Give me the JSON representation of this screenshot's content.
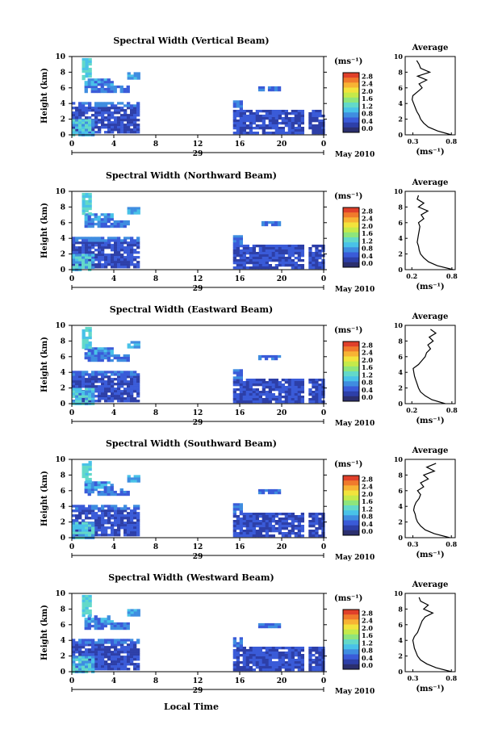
{
  "figure": {
    "date_label": "May 2010",
    "x_axis_title": "Local Time",
    "day_label": "29",
    "y_axis_title": "Height (km)",
    "unit_label": "(ms⁻¹)",
    "avg_title": "Average",
    "avg_unit": "(ms⁻¹)"
  },
  "colors": {
    "scale": [
      "#2b2f6e",
      "#2d3fa8",
      "#3a5bd8",
      "#3f8de0",
      "#49c2e8",
      "#63d9c9",
      "#8ee57c",
      "#c5ea4a",
      "#f2e33c",
      "#f7b334",
      "#f07a2c",
      "#e0402a"
    ]
  },
  "chart_data": [
    {
      "type": "heatmap",
      "title": "Spectral Width (Vertical Beam)",
      "x_ticks": [
        "0",
        "4",
        "8",
        "12",
        "16",
        "20",
        "0"
      ],
      "y_ticks": [
        "0",
        "2",
        "4",
        "6",
        "8",
        "10"
      ],
      "colorbar_ticks": [
        "0.0",
        "0.4",
        "0.8",
        "1.2",
        "1.6",
        "2.0",
        "2.4",
        "2.8"
      ],
      "avg_x_ticks": [
        "0.3",
        "0.8"
      ],
      "avg_profile": {
        "height_km": [
          0,
          0.5,
          1,
          1.5,
          2,
          2.5,
          3,
          3.5,
          4,
          4.5,
          5,
          5.5,
          6,
          6.5,
          7,
          7.5,
          8,
          8.5,
          9,
          9.5
        ],
        "width_ms": [
          0.8,
          0.62,
          0.5,
          0.44,
          0.4,
          0.38,
          0.35,
          0.33,
          0.31,
          0.29,
          0.3,
          0.36,
          0.42,
          0.38,
          0.48,
          0.36,
          0.52,
          0.4,
          0.38,
          0.35
        ]
      }
    },
    {
      "type": "heatmap",
      "title": "Spectral Width (Northward Beam)",
      "x_ticks": [
        "0",
        "4",
        "8",
        "12",
        "16",
        "20",
        "0"
      ],
      "y_ticks": [
        "0",
        "2",
        "4",
        "6",
        "8",
        "10"
      ],
      "colorbar_ticks": [
        "0.0",
        "0.4",
        "0.8",
        "1.2",
        "1.6",
        "2.0",
        "2.4",
        "2.8"
      ],
      "avg_x_ticks": [
        "0.2",
        "0.8"
      ],
      "avg_profile": {
        "height_km": [
          0,
          0.5,
          1,
          1.5,
          2,
          2.5,
          3,
          3.5,
          4,
          4.5,
          5,
          5.5,
          6,
          6.5,
          7,
          7.5,
          8,
          8.5,
          9,
          9.5
        ],
        "width_ms": [
          0.82,
          0.58,
          0.45,
          0.38,
          0.33,
          0.31,
          0.3,
          0.28,
          0.29,
          0.3,
          0.31,
          0.32,
          0.3,
          0.38,
          0.34,
          0.44,
          0.3,
          0.38,
          0.28,
          0.3
        ]
      }
    },
    {
      "type": "heatmap",
      "title": "Spectral Width (Eastward Beam)",
      "x_ticks": [
        "0",
        "4",
        "8",
        "12",
        "16",
        "20",
        "0"
      ],
      "y_ticks": [
        "0",
        "2",
        "4",
        "6",
        "8",
        "10"
      ],
      "colorbar_ticks": [
        "0.0",
        "0.4",
        "0.8",
        "1.2",
        "1.6",
        "2.0",
        "2.4",
        "2.8"
      ],
      "avg_x_ticks": [
        "0.2",
        "0.8"
      ],
      "avg_profile": {
        "height_km": [
          0,
          0.5,
          1,
          1.5,
          2,
          2.5,
          3,
          3.5,
          4,
          4.5,
          5,
          5.5,
          6,
          6.5,
          7,
          7.5,
          8,
          8.5,
          9,
          9.5
        ],
        "width_ms": [
          0.7,
          0.5,
          0.4,
          0.33,
          0.3,
          0.28,
          0.26,
          0.24,
          0.23,
          0.22,
          0.3,
          0.35,
          0.4,
          0.42,
          0.48,
          0.44,
          0.52,
          0.46,
          0.56,
          0.48
        ]
      }
    },
    {
      "type": "heatmap",
      "title": "Spectral Width (Southward Beam)",
      "x_ticks": [
        "0",
        "4",
        "8",
        "12",
        "16",
        "20",
        "0"
      ],
      "y_ticks": [
        "0",
        "2",
        "4",
        "6",
        "8",
        "10"
      ],
      "colorbar_ticks": [
        "0.0",
        "0.4",
        "0.8",
        "1.2",
        "1.6",
        "2.0",
        "2.4",
        "2.8"
      ],
      "avg_x_ticks": [
        "0.3",
        "0.8"
      ],
      "avg_profile": {
        "height_km": [
          0,
          0.5,
          1,
          1.5,
          2,
          2.5,
          3,
          3.5,
          4,
          4.5,
          5,
          5.5,
          6,
          6.5,
          7,
          7.5,
          8,
          8.5,
          9,
          9.5
        ],
        "width_ms": [
          0.78,
          0.58,
          0.46,
          0.4,
          0.36,
          0.34,
          0.33,
          0.31,
          0.32,
          0.34,
          0.38,
          0.4,
          0.36,
          0.44,
          0.4,
          0.5,
          0.44,
          0.58,
          0.48,
          0.6
        ]
      }
    },
    {
      "type": "heatmap",
      "title": "Spectral Width (Westward Beam)",
      "x_ticks": [
        "0",
        "4",
        "8",
        "12",
        "16",
        "20",
        "0"
      ],
      "y_ticks": [
        "0",
        "2",
        "4",
        "6",
        "8",
        "10"
      ],
      "colorbar_ticks": [
        "0.0",
        "0.4",
        "0.8",
        "1.2",
        "1.6",
        "2.0",
        "2.4",
        "2.8"
      ],
      "avg_x_ticks": [
        "0.3",
        "0.8"
      ],
      "avg_profile": {
        "height_km": [
          0,
          0.5,
          1,
          1.5,
          2,
          2.5,
          3,
          3.5,
          4,
          4.5,
          5,
          5.5,
          6,
          6.5,
          7,
          7.5,
          8,
          8.5,
          9,
          9.5
        ],
        "width_ms": [
          0.8,
          0.6,
          0.48,
          0.4,
          0.36,
          0.34,
          0.32,
          0.31,
          0.3,
          0.32,
          0.36,
          0.38,
          0.4,
          0.42,
          0.46,
          0.56,
          0.44,
          0.5,
          0.4,
          0.38
        ]
      }
    }
  ]
}
